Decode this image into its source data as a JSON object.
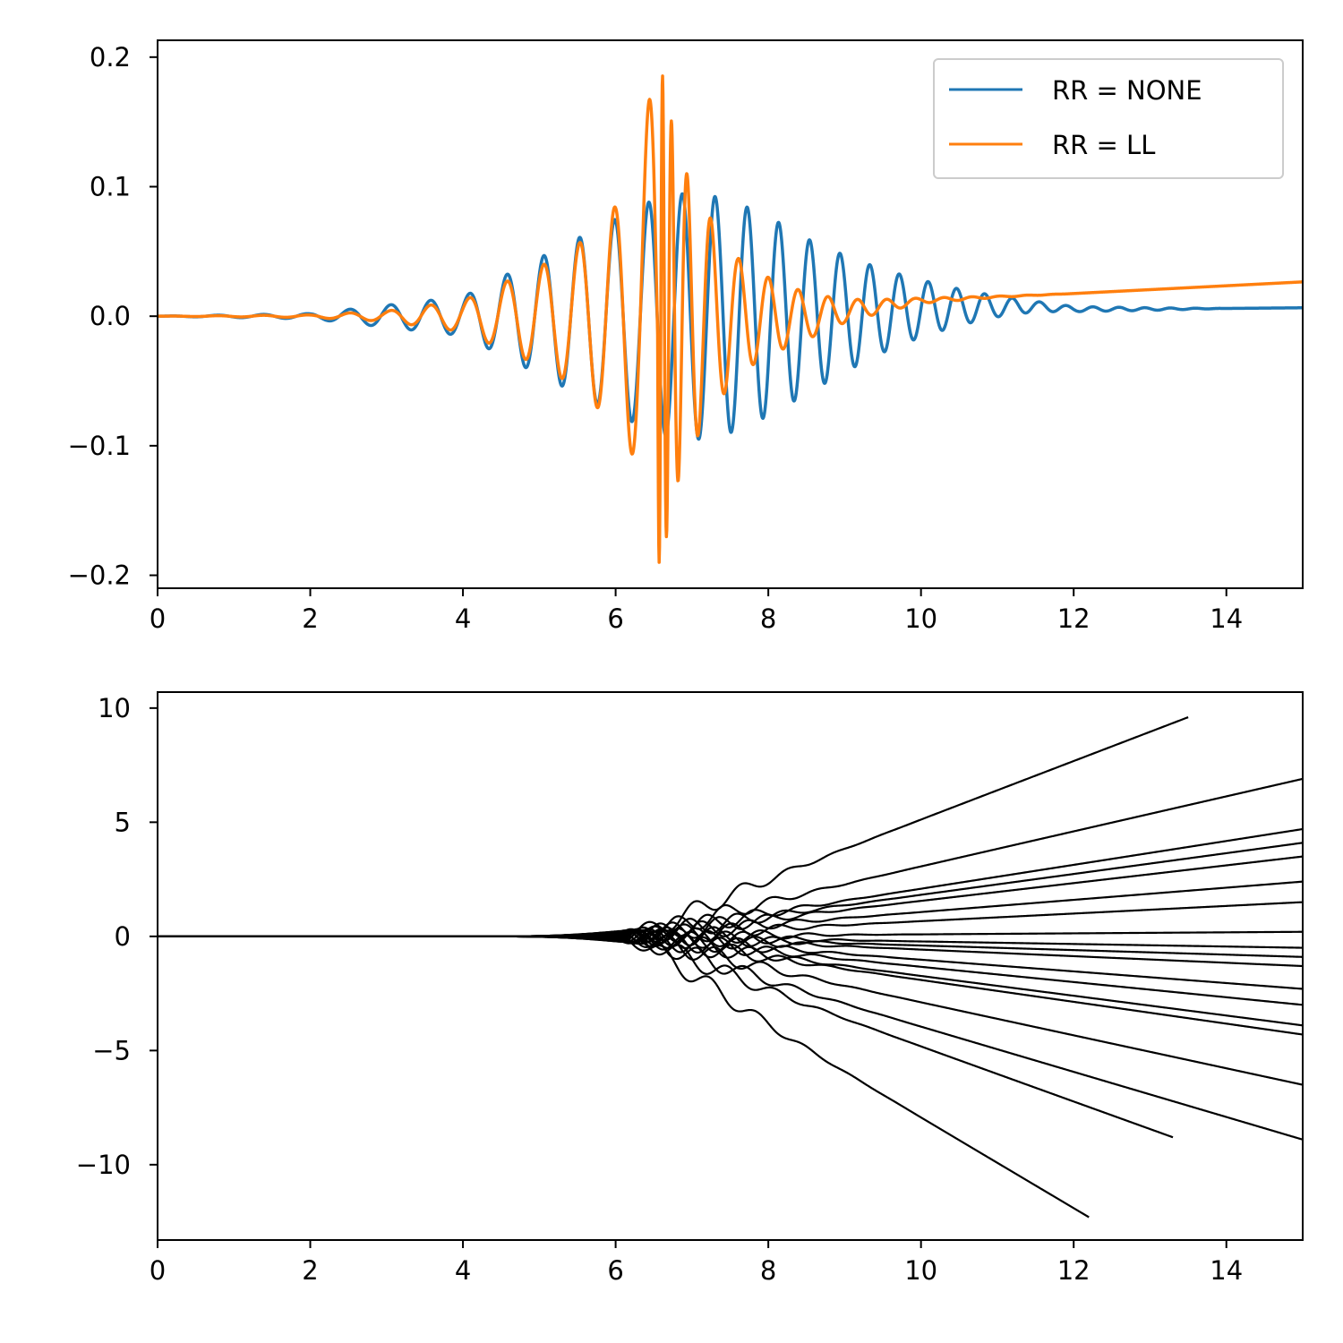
{
  "chart_data": [
    {
      "type": "line",
      "xlim": [
        0,
        15
      ],
      "ylim": [
        -0.21,
        0.213
      ],
      "x_ticks": [
        0,
        2,
        4,
        6,
        8,
        10,
        12,
        14
      ],
      "x_tick_labels": [
        "0",
        "2",
        "4",
        "6",
        "8",
        "10",
        "12",
        "14"
      ],
      "y_ticks": [
        -0.2,
        -0.1,
        0.0,
        0.1,
        0.2
      ],
      "y_tick_labels": [
        "−0.2",
        "−0.1",
        "0.0",
        "0.1",
        "0.2"
      ],
      "grid": false,
      "legend_position": "top-right",
      "series": [
        {
          "name": "RR = NONE",
          "color": "#1f77b4",
          "x": [
            0,
            2,
            4,
            5,
            6,
            6.5,
            7,
            7.5,
            8,
            8.5,
            9,
            9.5,
            10,
            10.5,
            11,
            11.5,
            12,
            13,
            14,
            15
          ],
          "envelope": [
            0,
            0.002,
            0.015,
            0.045,
            0.075,
            0.09,
            0.096,
            0.09,
            0.077,
            0.06,
            0.045,
            0.032,
            0.022,
            0.014,
            0.008,
            0.004,
            0.002,
            0.001,
            0.0,
            0.0
          ],
          "trend": [
            0,
            0,
            0,
            0,
            0,
            0,
            0,
            0,
            0,
            0,
            0.002,
            0.004,
            0.006,
            0.007,
            0.0075,
            0.0075,
            0.0055,
            0.0055,
            0.006,
            0.0065
          ]
        },
        {
          "name": "RR = LL",
          "color": "#ff7f0e",
          "x": [
            0,
            2,
            3,
            4,
            5,
            5.5,
            6,
            6.3,
            6.5,
            6.6,
            6.8,
            7,
            7.3,
            7.6,
            8,
            8.5,
            9,
            9.5,
            10,
            11,
            12,
            13,
            14,
            15
          ],
          "envelope": [
            0,
            0.001,
            0.004,
            0.012,
            0.038,
            0.055,
            0.085,
            0.115,
            0.19,
            0.19,
            0.13,
            0.1,
            0.07,
            0.045,
            0.03,
            0.018,
            0.009,
            0.005,
            0.002,
            0.0005,
            0.0,
            0.0,
            0.0,
            0.0
          ],
          "trend": [
            0,
            0,
            0,
            0,
            0,
            0,
            0,
            0,
            0,
            0,
            0,
            0,
            0,
            0,
            0,
            0,
            0.004,
            0.008,
            0.012,
            0.015,
            0.0175,
            0.0205,
            0.0235,
            0.0265
          ]
        }
      ]
    },
    {
      "type": "line",
      "xlim": [
        0,
        15
      ],
      "ylim": [
        -13.3,
        10.7
      ],
      "x_ticks": [
        0,
        2,
        4,
        6,
        8,
        10,
        12,
        14
      ],
      "x_tick_labels": [
        "0",
        "2",
        "4",
        "6",
        "8",
        "10",
        "12",
        "14"
      ],
      "y_ticks": [
        -10,
        -5,
        0,
        5,
        10
      ],
      "y_tick_labels": [
        "−10",
        "−5",
        "0",
        "5",
        "10"
      ],
      "grid": false,
      "line_color": "#000000",
      "trajectories": [
        {
          "end_x": 13.5,
          "end_y": 9.6
        },
        {
          "end_x": 15,
          "end_y": 6.9
        },
        {
          "end_x": 15,
          "end_y": 4.7
        },
        {
          "end_x": 15,
          "end_y": 4.1
        },
        {
          "end_x": 15,
          "end_y": 3.5
        },
        {
          "end_x": 15,
          "end_y": 2.4
        },
        {
          "end_x": 15,
          "end_y": 1.5
        },
        {
          "end_x": 15,
          "end_y": 0.2
        },
        {
          "end_x": 15,
          "end_y": -0.5
        },
        {
          "end_x": 15,
          "end_y": -0.9
        },
        {
          "end_x": 15,
          "end_y": -1.3
        },
        {
          "end_x": 15,
          "end_y": -2.3
        },
        {
          "end_x": 15,
          "end_y": -3.0
        },
        {
          "end_x": 15,
          "end_y": -3.9
        },
        {
          "end_x": 15,
          "end_y": -4.3
        },
        {
          "end_x": 15,
          "end_y": -6.5
        },
        {
          "end_x": 15,
          "end_y": -8.9
        },
        {
          "end_x": 13.3,
          "end_y": -8.8
        },
        {
          "end_x": 12.2,
          "end_y": -12.3
        }
      ]
    }
  ]
}
